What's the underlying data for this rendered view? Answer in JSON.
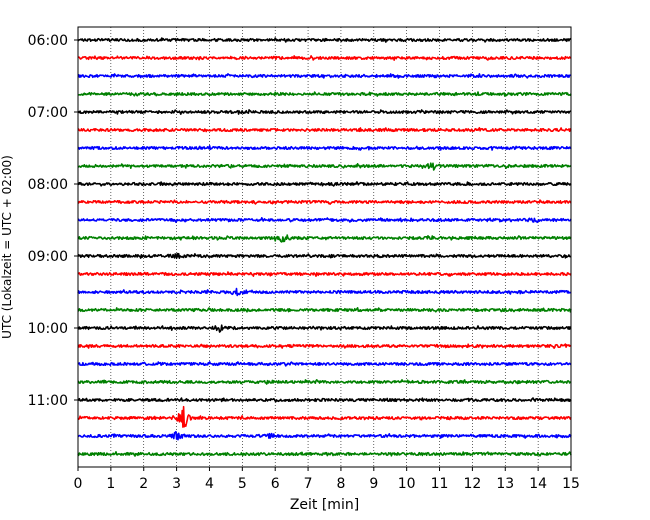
{
  "chart_data": {
    "type": "line",
    "title": "",
    "xlabel": "Zeit  [min]",
    "ylabel": "UTC (Lokalzeit = UTC + 02:00)",
    "xlim": [
      0,
      15
    ],
    "x_ticks": [
      0,
      1,
      2,
      3,
      4,
      5,
      6,
      7,
      8,
      9,
      10,
      11,
      12,
      13,
      14,
      15
    ],
    "x_grid": true,
    "grid_style": "dotted",
    "y_ticks": [
      "06:00",
      "07:00",
      "08:00",
      "09:00",
      "10:00",
      "11:00"
    ],
    "trace_interval_min": 15,
    "first_trace_utc": "06:00",
    "colors_cycle": [
      "#000000",
      "#ff0000",
      "#0000ff",
      "#008000"
    ],
    "traces": [
      {
        "start_utc": "06:00",
        "color": "#000000",
        "events": []
      },
      {
        "start_utc": "06:15",
        "color": "#ff0000",
        "events": []
      },
      {
        "start_utc": "06:30",
        "color": "#0000ff",
        "events": []
      },
      {
        "start_utc": "06:45",
        "color": "#008000",
        "events": []
      },
      {
        "start_utc": "07:00",
        "color": "#000000",
        "events": []
      },
      {
        "start_utc": "07:15",
        "color": "#ff0000",
        "events": []
      },
      {
        "start_utc": "07:30",
        "color": "#0000ff",
        "events": []
      },
      {
        "start_utc": "07:45",
        "color": "#008000",
        "events": [
          {
            "t": 10.8,
            "amp": 3.5
          }
        ]
      },
      {
        "start_utc": "08:00",
        "color": "#000000",
        "events": []
      },
      {
        "start_utc": "08:15",
        "color": "#ff0000",
        "events": []
      },
      {
        "start_utc": "08:30",
        "color": "#0000ff",
        "events": [
          {
            "t": 10.0,
            "amp": 2
          },
          {
            "t": 13.9,
            "amp": 2
          }
        ]
      },
      {
        "start_utc": "08:45",
        "color": "#008000",
        "events": [
          {
            "t": 6.2,
            "amp": 5
          }
        ]
      },
      {
        "start_utc": "09:00",
        "color": "#000000",
        "events": [
          {
            "t": 3.0,
            "amp": 2
          }
        ]
      },
      {
        "start_utc": "09:15",
        "color": "#ff0000",
        "events": []
      },
      {
        "start_utc": "09:30",
        "color": "#0000ff",
        "events": [
          {
            "t": 4.8,
            "amp": 3.5
          }
        ]
      },
      {
        "start_utc": "09:45",
        "color": "#008000",
        "events": []
      },
      {
        "start_utc": "10:00",
        "color": "#000000",
        "events": [
          {
            "t": 4.3,
            "amp": 3
          }
        ]
      },
      {
        "start_utc": "10:15",
        "color": "#ff0000",
        "events": []
      },
      {
        "start_utc": "10:30",
        "color": "#0000ff",
        "events": []
      },
      {
        "start_utc": "10:45",
        "color": "#008000",
        "events": []
      },
      {
        "start_utc": "11:00",
        "color": "#000000",
        "events": []
      },
      {
        "start_utc": "11:15",
        "color": "#ff0000",
        "events": [
          {
            "t": 3.2,
            "amp": 15
          }
        ]
      },
      {
        "start_utc": "11:30",
        "color": "#0000ff",
        "events": [
          {
            "t": 3.0,
            "amp": 4
          },
          {
            "t": 5.9,
            "amp": 2
          }
        ]
      },
      {
        "start_utc": "11:45",
        "color": "#008000",
        "events": []
      }
    ]
  }
}
